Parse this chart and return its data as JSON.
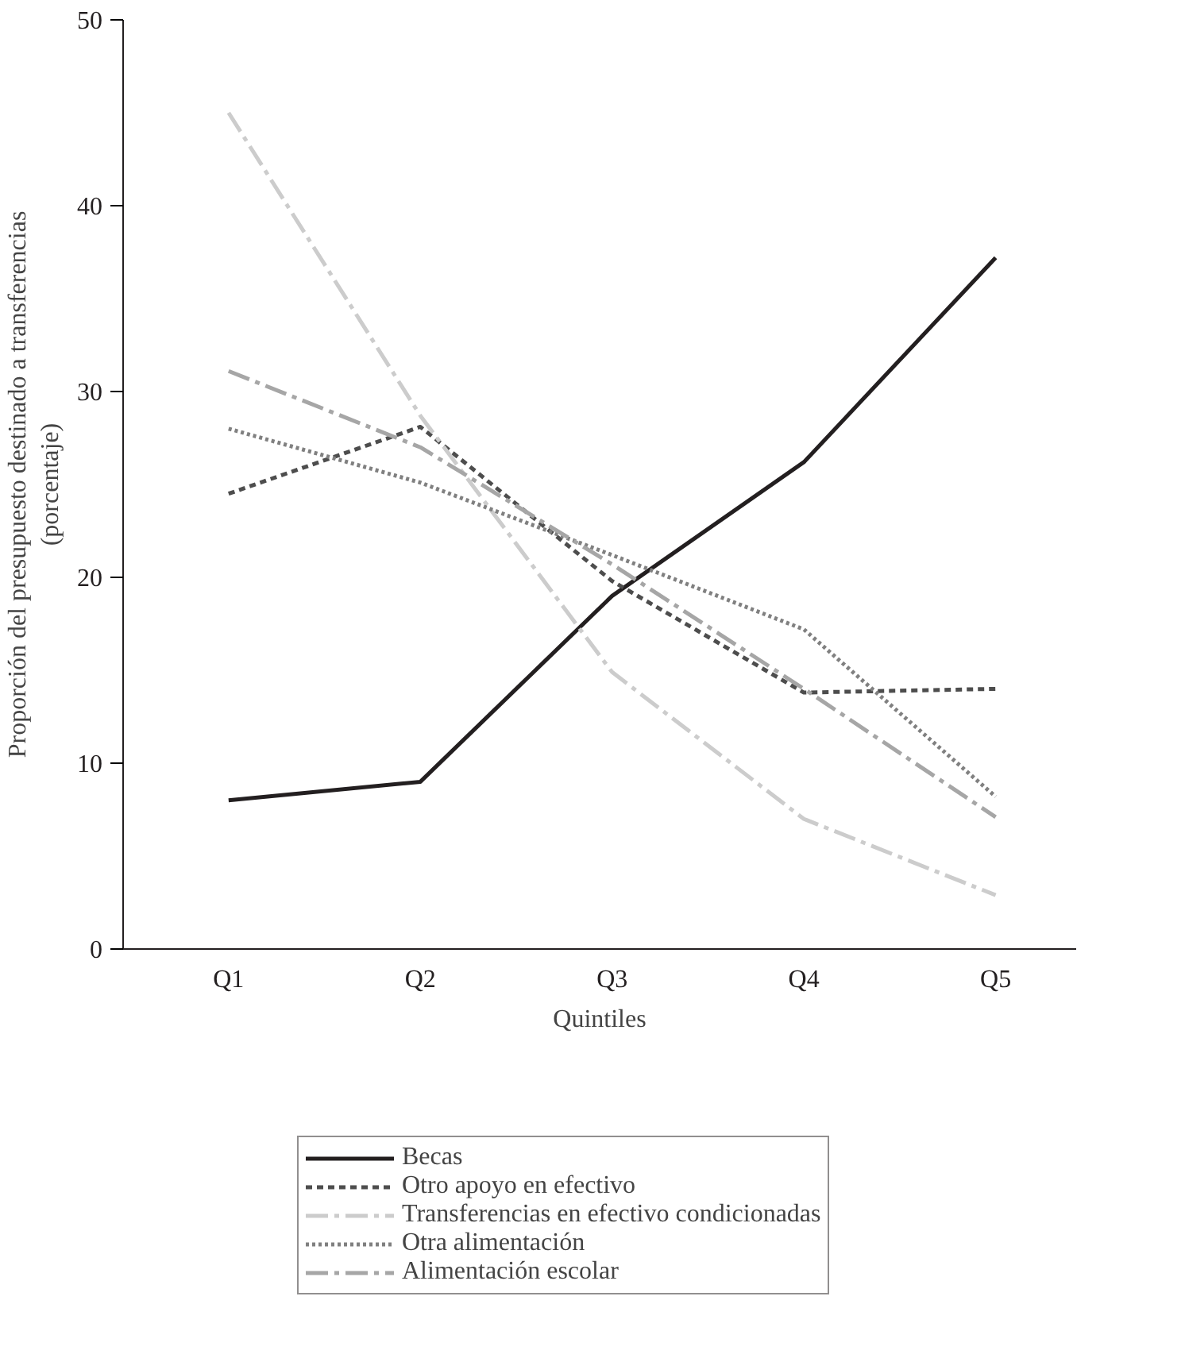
{
  "chart_data": {
    "type": "line",
    "xlabel": "Quintiles",
    "ylabel": "Proporción del presupuesto destinado a transferencias\n(porcentaje)",
    "categories": [
      "Q1",
      "Q2",
      "Q3",
      "Q4",
      "Q5"
    ],
    "ylim": [
      0,
      50
    ],
    "yticks": [
      0,
      10,
      20,
      30,
      40,
      50
    ],
    "grid": false,
    "legend": "bottom",
    "marker": "none",
    "series": [
      {
        "name": "Becas",
        "color": "#231f20",
        "line_style": "solid",
        "values": [
          8.0,
          9.0,
          19.0,
          26.2,
          37.2
        ]
      },
      {
        "name": "Otro apoyo en efectivo",
        "color": "#4d4d4d",
        "line_style": "dashed",
        "values": [
          24.5,
          28.1,
          19.8,
          13.8,
          14.0
        ]
      },
      {
        "name": "Transferencias en efectivo condicionadas",
        "color": "#cccccc",
        "line_style": "dashdot",
        "values": [
          45.0,
          28.7,
          14.9,
          7.0,
          2.9
        ]
      },
      {
        "name": "Otra alimentación",
        "color": "#808080",
        "line_style": "dotted",
        "values": [
          28.0,
          25.1,
          21.2,
          17.2,
          8.2
        ]
      },
      {
        "name": "Alimentación escolar",
        "color": "#a6a6a6",
        "line_style": "dashdot",
        "values": [
          31.1,
          27.0,
          20.7,
          14.0,
          7.1
        ]
      }
    ]
  }
}
